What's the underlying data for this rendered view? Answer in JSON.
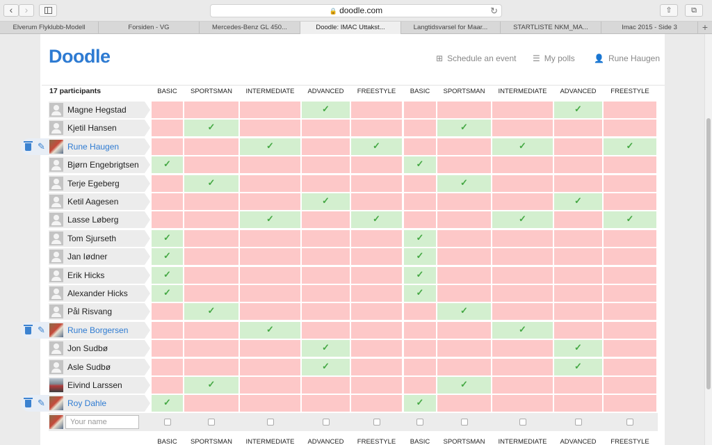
{
  "browser": {
    "url": "doodle.com",
    "tabs": [
      "Elverum Flyklubb-Modell",
      "Forsiden - VG",
      "Mercedes-Benz GL 450...",
      "Doodle: IMAC Uttakst...",
      "Langtidsvarsel for Maar...",
      "STARTLISTE NKM_MA...",
      "Imac 2015 - Side 3"
    ],
    "active_tab": 3
  },
  "header": {
    "logo": "Doodle",
    "schedule_label": "Schedule an event",
    "polls_label": "My polls",
    "user_label": "Rune Haugen"
  },
  "poll": {
    "participants_label": "17 participants",
    "columns": [
      "BASIC",
      "SPORTSMAN",
      "INTERMEDIATE",
      "ADVANCED",
      "FREESTYLE",
      "BASIC",
      "SPORTSMAN",
      "INTERMEDIATE",
      "ADVANCED",
      "FREESTYLE"
    ],
    "participants": [
      {
        "name": "Magne Hegstad",
        "avatar": "default",
        "own": false,
        "votes": [
          0,
          0,
          0,
          1,
          0,
          0,
          0,
          0,
          1,
          0
        ]
      },
      {
        "name": "Kjetil Hansen",
        "avatar": "default",
        "own": false,
        "votes": [
          0,
          1,
          0,
          0,
          0,
          0,
          1,
          0,
          0,
          0
        ]
      },
      {
        "name": "Rune Haugen",
        "avatar": "photo",
        "own": true,
        "votes": [
          0,
          0,
          1,
          0,
          1,
          0,
          0,
          1,
          0,
          1
        ]
      },
      {
        "name": "Bjørn Engebrigtsen",
        "avatar": "default",
        "own": false,
        "votes": [
          1,
          0,
          0,
          0,
          0,
          1,
          0,
          0,
          0,
          0
        ]
      },
      {
        "name": "Terje Egeberg",
        "avatar": "default",
        "own": false,
        "votes": [
          0,
          1,
          0,
          0,
          0,
          0,
          1,
          0,
          0,
          0
        ]
      },
      {
        "name": "Ketil Aagesen",
        "avatar": "default",
        "own": false,
        "votes": [
          0,
          0,
          0,
          1,
          0,
          0,
          0,
          0,
          1,
          0
        ]
      },
      {
        "name": "Lasse Løberg",
        "avatar": "default",
        "own": false,
        "votes": [
          0,
          0,
          1,
          0,
          1,
          0,
          0,
          1,
          0,
          1
        ]
      },
      {
        "name": "Tom Sjurseth",
        "avatar": "default",
        "own": false,
        "votes": [
          1,
          0,
          0,
          0,
          0,
          1,
          0,
          0,
          0,
          0
        ]
      },
      {
        "name": "Jan Iødner",
        "avatar": "default",
        "own": false,
        "votes": [
          1,
          0,
          0,
          0,
          0,
          1,
          0,
          0,
          0,
          0
        ]
      },
      {
        "name": "Erik Hicks",
        "avatar": "default",
        "own": false,
        "votes": [
          1,
          0,
          0,
          0,
          0,
          1,
          0,
          0,
          0,
          0
        ]
      },
      {
        "name": "Alexander Hicks",
        "avatar": "default",
        "own": false,
        "votes": [
          1,
          0,
          0,
          0,
          0,
          1,
          0,
          0,
          0,
          0
        ]
      },
      {
        "name": "Pål Risvang",
        "avatar": "default",
        "own": false,
        "votes": [
          0,
          1,
          0,
          0,
          0,
          0,
          1,
          0,
          0,
          0
        ]
      },
      {
        "name": "Rune Borgersen",
        "avatar": "photo",
        "own": true,
        "votes": [
          0,
          0,
          1,
          0,
          0,
          0,
          0,
          1,
          0,
          0
        ]
      },
      {
        "name": "Jon Sudbø",
        "avatar": "default",
        "own": false,
        "votes": [
          0,
          0,
          0,
          1,
          0,
          0,
          0,
          0,
          1,
          0
        ]
      },
      {
        "name": "Asle Sudbø",
        "avatar": "default",
        "own": false,
        "votes": [
          0,
          0,
          0,
          1,
          0,
          0,
          0,
          0,
          1,
          0
        ]
      },
      {
        "name": "Eivind Larssen",
        "avatar": "photo2",
        "own": false,
        "votes": [
          0,
          1,
          0,
          0,
          0,
          0,
          1,
          0,
          0,
          0
        ]
      },
      {
        "name": "Roy Dahle",
        "avatar": "photo",
        "own": true,
        "votes": [
          1,
          0,
          0,
          0,
          0,
          1,
          0,
          0,
          0,
          0
        ]
      }
    ],
    "name_placeholder": "Your name"
  },
  "colors": {
    "yes": "#d3efcf",
    "no": "#fdc8c8",
    "check": "#45a844",
    "accent": "#2e7bd2"
  }
}
